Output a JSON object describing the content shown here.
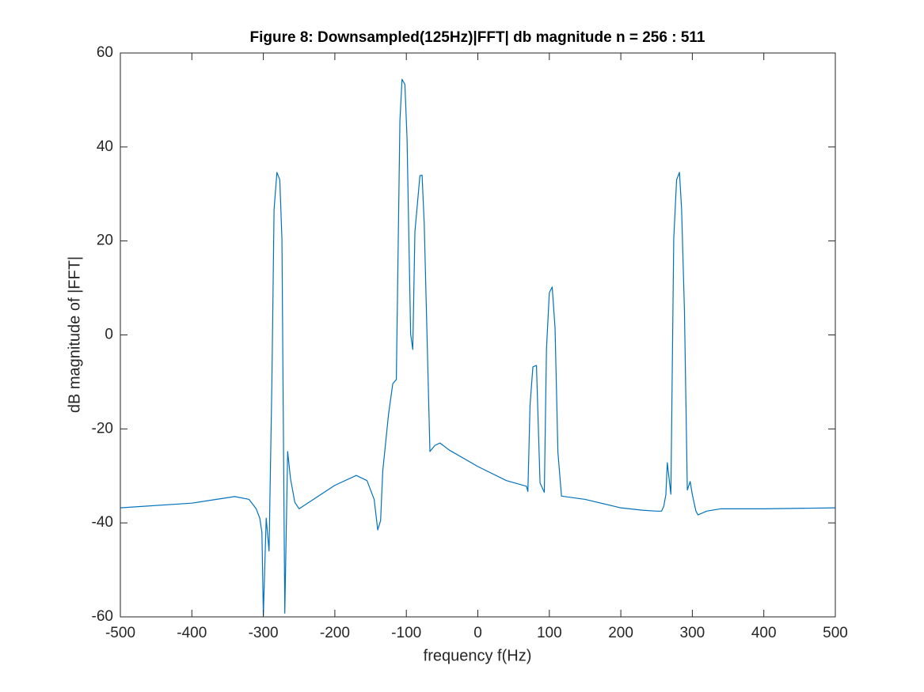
{
  "chart_data": {
    "type": "line",
    "title": "Figure 8: Downsampled(125Hz)|FFT| db magnitude n = 256 : 511",
    "xlabel": "frequency f(Hz)",
    "ylabel": "dB magnitude of |FFT|",
    "color": "#0072bd",
    "x": [
      -500,
      -400,
      -340,
      -320,
      -310,
      -305,
      -302,
      -300,
      -296,
      -292,
      -288,
      -285,
      -281,
      -277,
      -274,
      -270,
      -266,
      -262,
      -256,
      -250,
      -240,
      -200,
      -170,
      -155,
      -145,
      -140,
      -136,
      -133,
      -125,
      -119,
      -114,
      -109,
      -106,
      -102,
      -99,
      -94,
      -91,
      -88,
      -81,
      -78,
      -75,
      -67,
      -60,
      -53,
      -40,
      0,
      40,
      68,
      70,
      73,
      77,
      82,
      87,
      93,
      96,
      100,
      104,
      108,
      112,
      117,
      150,
      200,
      230,
      250,
      257,
      260,
      263,
      265,
      270,
      274,
      278,
      282,
      285,
      289,
      293,
      297,
      300,
      305,
      308,
      320,
      340,
      400,
      500
    ],
    "values": [
      -36.8,
      -35.8,
      -34.4,
      -35,
      -37,
      -39,
      -42,
      -59.7,
      -39,
      -46,
      -9.5,
      26.7,
      34.6,
      33,
      20.4,
      -59.2,
      -24.8,
      -30.6,
      -35.6,
      -37,
      -36,
      -32,
      -29.9,
      -31,
      -35,
      -41.5,
      -39.5,
      -29,
      -17,
      -10.4,
      -9.5,
      45.5,
      54.4,
      53.3,
      41.8,
      0.2,
      -3.1,
      22,
      33.9,
      34,
      23.8,
      -24.8,
      -23.5,
      -23,
      -24.5,
      -28,
      -31,
      -32.2,
      -33.3,
      -15,
      -6.8,
      -6.5,
      -31.5,
      -33.5,
      -3,
      9,
      10.2,
      1.5,
      -25,
      -34.3,
      -35,
      -36.8,
      -37.3,
      -37.5,
      -37.5,
      -36.5,
      -34,
      -27.2,
      -33.9,
      20.4,
      33,
      34.6,
      26.7,
      5,
      -33,
      -31.2,
      -34,
      -37.5,
      -38.3,
      -37.5,
      -37,
      -37,
      -36.8
    ],
    "xlim": [
      -500,
      500
    ],
    "ylim": [
      -60,
      60
    ],
    "xticks": [
      -500,
      -400,
      -300,
      -200,
      -100,
      0,
      100,
      200,
      300,
      400,
      500
    ],
    "yticks": [
      -60,
      -40,
      -20,
      0,
      20,
      40,
      60
    ],
    "box": true
  }
}
